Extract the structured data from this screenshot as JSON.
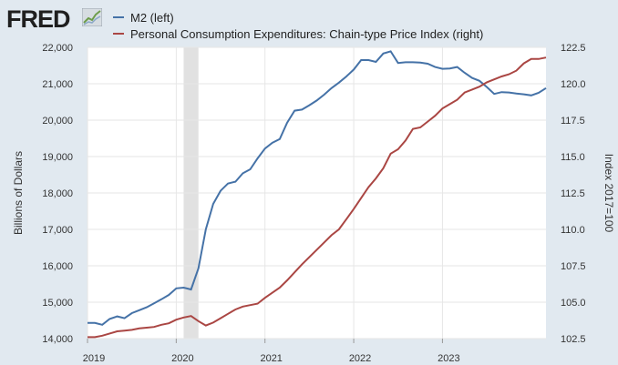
{
  "header": {
    "logo_text": "FRED",
    "logo_icon": "line-chart-icon"
  },
  "colors": {
    "background": "#e1e9f0",
    "plot_background": "#ffffff",
    "m2": "#4572a7",
    "pce": "#aa4643",
    "recession": "#e1e1e1"
  },
  "chart_data": {
    "type": "line",
    "series": [
      {
        "name": "M2 (left)",
        "axis": "left",
        "points": [
          [
            "2019-01",
            14430
          ],
          [
            "2019-02",
            14430
          ],
          [
            "2019-03",
            14380
          ],
          [
            "2019-04",
            14540
          ],
          [
            "2019-05",
            14610
          ],
          [
            "2019-06",
            14560
          ],
          [
            "2019-07",
            14700
          ],
          [
            "2019-08",
            14780
          ],
          [
            "2019-09",
            14860
          ],
          [
            "2019-10",
            14970
          ],
          [
            "2019-11",
            15080
          ],
          [
            "2019-12",
            15200
          ],
          [
            "2020-01",
            15380
          ],
          [
            "2020-02",
            15400
          ],
          [
            "2020-03",
            15350
          ],
          [
            "2020-04",
            15930
          ],
          [
            "2020-05",
            17000
          ],
          [
            "2020-06",
            17700
          ],
          [
            "2020-07",
            18060
          ],
          [
            "2020-08",
            18260
          ],
          [
            "2020-09",
            18310
          ],
          [
            "2020-10",
            18540
          ],
          [
            "2020-11",
            18650
          ],
          [
            "2020-12",
            18950
          ],
          [
            "2021-01",
            19220
          ],
          [
            "2021-02",
            19380
          ],
          [
            "2021-03",
            19480
          ],
          [
            "2021-04",
            19930
          ],
          [
            "2021-05",
            20260
          ],
          [
            "2021-06",
            20290
          ],
          [
            "2021-07",
            20410
          ],
          [
            "2021-08",
            20540
          ],
          [
            "2021-09",
            20700
          ],
          [
            "2021-10",
            20880
          ],
          [
            "2021-11",
            21030
          ],
          [
            "2021-12",
            21200
          ],
          [
            "2022-01",
            21390
          ],
          [
            "2022-02",
            21650
          ],
          [
            "2022-03",
            21650
          ],
          [
            "2022-04",
            21600
          ],
          [
            "2022-05",
            21830
          ],
          [
            "2022-06",
            21890
          ],
          [
            "2022-07",
            21570
          ],
          [
            "2022-08",
            21590
          ],
          [
            "2022-09",
            21590
          ],
          [
            "2022-10",
            21580
          ],
          [
            "2022-11",
            21550
          ],
          [
            "2022-12",
            21460
          ],
          [
            "2023-01",
            21410
          ],
          [
            "2023-02",
            21420
          ],
          [
            "2023-03",
            21460
          ],
          [
            "2023-04",
            21300
          ],
          [
            "2023-05",
            21160
          ],
          [
            "2023-06",
            21080
          ],
          [
            "2023-07",
            20910
          ],
          [
            "2023-08",
            20720
          ],
          [
            "2023-09",
            20770
          ],
          [
            "2023-10",
            20760
          ],
          [
            "2023-11",
            20730
          ],
          [
            "2023-12",
            20710
          ],
          [
            "2024-01",
            20680
          ],
          [
            "2024-02",
            20750
          ],
          [
            "2024-03",
            20880
          ]
        ]
      },
      {
        "name": "Personal Consumption Expenditures: Chain-type Price Index (right)",
        "axis": "right",
        "points": [
          [
            "2019-01",
            102.6
          ],
          [
            "2019-02",
            102.6
          ],
          [
            "2019-03",
            102.7
          ],
          [
            "2019-04",
            102.85
          ],
          [
            "2019-05",
            103.0
          ],
          [
            "2019-06",
            103.05
          ],
          [
            "2019-07",
            103.1
          ],
          [
            "2019-08",
            103.2
          ],
          [
            "2019-09",
            103.25
          ],
          [
            "2019-10",
            103.3
          ],
          [
            "2019-11",
            103.45
          ],
          [
            "2019-12",
            103.55
          ],
          [
            "2020-01",
            103.8
          ],
          [
            "2020-02",
            103.95
          ],
          [
            "2020-03",
            104.05
          ],
          [
            "2020-04",
            103.7
          ],
          [
            "2020-05",
            103.4
          ],
          [
            "2020-06",
            103.6
          ],
          [
            "2020-07",
            103.9
          ],
          [
            "2020-08",
            104.2
          ],
          [
            "2020-09",
            104.5
          ],
          [
            "2020-10",
            104.7
          ],
          [
            "2020-11",
            104.8
          ],
          [
            "2020-12",
            104.9
          ],
          [
            "2021-01",
            105.3
          ],
          [
            "2021-02",
            105.65
          ],
          [
            "2021-03",
            106.0
          ],
          [
            "2021-04",
            106.5
          ],
          [
            "2021-05",
            107.05
          ],
          [
            "2021-06",
            107.6
          ],
          [
            "2021-07",
            108.1
          ],
          [
            "2021-08",
            108.6
          ],
          [
            "2021-09",
            109.1
          ],
          [
            "2021-10",
            109.6
          ],
          [
            "2021-11",
            110.0
          ],
          [
            "2021-12",
            110.7
          ],
          [
            "2022-01",
            111.4
          ],
          [
            "2022-02",
            112.15
          ],
          [
            "2022-03",
            112.9
          ],
          [
            "2022-04",
            113.5
          ],
          [
            "2022-05",
            114.2
          ],
          [
            "2022-06",
            115.2
          ],
          [
            "2022-07",
            115.5
          ],
          [
            "2022-08",
            116.1
          ],
          [
            "2022-09",
            116.9
          ],
          [
            "2022-10",
            117.0
          ],
          [
            "2022-11",
            117.4
          ],
          [
            "2022-12",
            117.8
          ],
          [
            "2023-01",
            118.3
          ],
          [
            "2023-02",
            118.6
          ],
          [
            "2023-03",
            118.9
          ],
          [
            "2023-04",
            119.4
          ],
          [
            "2023-05",
            119.6
          ],
          [
            "2023-06",
            119.8
          ],
          [
            "2023-07",
            120.1
          ],
          [
            "2023-08",
            120.3
          ],
          [
            "2023-09",
            120.5
          ],
          [
            "2023-10",
            120.65
          ],
          [
            "2023-11",
            120.9
          ],
          [
            "2023-12",
            121.4
          ],
          [
            "2024-01",
            121.7
          ],
          [
            "2024-02",
            121.7
          ],
          [
            "2024-03",
            121.8
          ]
        ]
      }
    ],
    "x_range": [
      "2019-01",
      "2024-03"
    ],
    "x_ticks": [
      {
        "label": "2019",
        "date": "2019-01"
      },
      {
        "label": "2020",
        "date": "2020-01"
      },
      {
        "label": "2021",
        "date": "2021-01"
      },
      {
        "label": "2022",
        "date": "2022-01"
      },
      {
        "label": "2023",
        "date": "2023-01"
      }
    ],
    "y_left": {
      "label": "Billions of Dollars",
      "range": [
        14000,
        22000
      ],
      "ticks": [
        {
          "value": 14000,
          "label": "14,000"
        },
        {
          "value": 15000,
          "label": "15,000"
        },
        {
          "value": 16000,
          "label": "16,000"
        },
        {
          "value": 17000,
          "label": "17,000"
        },
        {
          "value": 18000,
          "label": "18,000"
        },
        {
          "value": 19000,
          "label": "19,000"
        },
        {
          "value": 20000,
          "label": "20,000"
        },
        {
          "value": 21000,
          "label": "21,000"
        },
        {
          "value": 22000,
          "label": "22,000"
        }
      ]
    },
    "y_right": {
      "label": "Index 2017=100",
      "range": [
        102.5,
        122.5
      ],
      "ticks": [
        {
          "value": 102.5,
          "label": "102.5"
        },
        {
          "value": 105.0,
          "label": "105.0"
        },
        {
          "value": 107.5,
          "label": "107.5"
        },
        {
          "value": 110.0,
          "label": "110.0"
        },
        {
          "value": 112.5,
          "label": "112.5"
        },
        {
          "value": 115.0,
          "label": "115.0"
        },
        {
          "value": 117.5,
          "label": "117.5"
        },
        {
          "value": 120.0,
          "label": "120.0"
        },
        {
          "value": 122.5,
          "label": "122.5"
        }
      ]
    },
    "recession": [
      {
        "start": "2020-02",
        "end": "2020-04"
      }
    ],
    "grid": true,
    "legend_position": "top-left"
  }
}
